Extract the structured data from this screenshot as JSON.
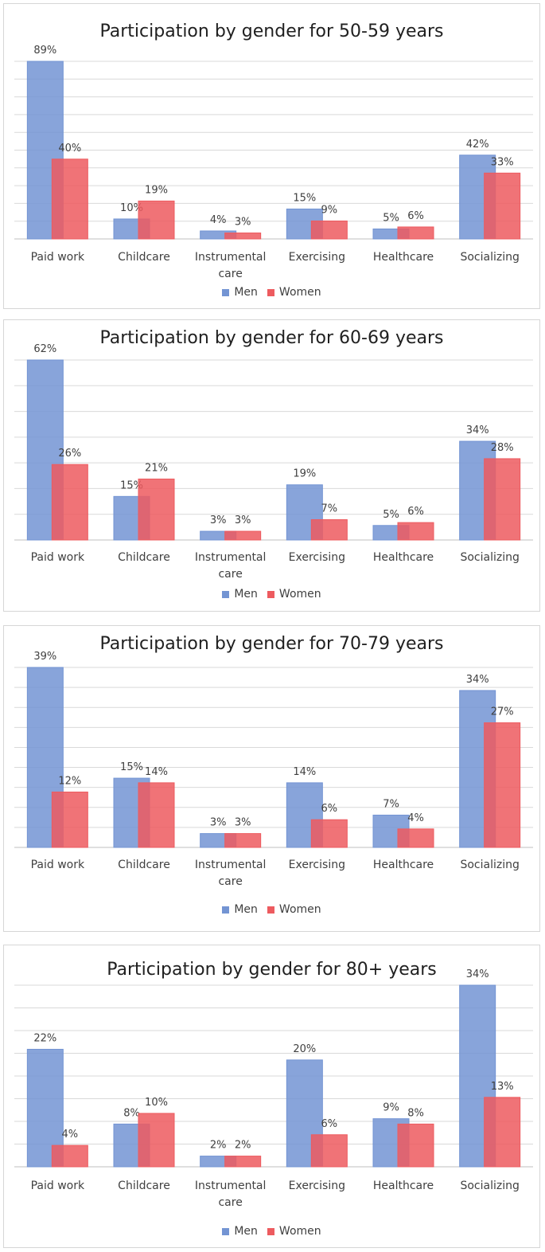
{
  "legend": {
    "men": "Men",
    "women": "Women"
  },
  "colors": {
    "men": "#7394d3",
    "women": "#ed5b5f"
  },
  "chart_data": [
    {
      "type": "bar",
      "title": "Participation by gender for 50-59 years",
      "categories": [
        [
          "Paid work"
        ],
        [
          "Childcare"
        ],
        [
          "Instrumental",
          "care"
        ],
        [
          "Exercising"
        ],
        [
          "Healthcare"
        ],
        [
          "Socializing"
        ]
      ],
      "series": [
        {
          "name": "Men",
          "values": [
            89,
            10,
            4,
            15,
            5,
            42
          ],
          "labels": [
            "89%",
            "10%",
            "4%",
            "15%",
            "5%",
            "42%"
          ]
        },
        {
          "name": "Women",
          "values": [
            40,
            19,
            3,
            9,
            6,
            33
          ],
          "labels": [
            "40%",
            "19%",
            "3%",
            "9%",
            "6%",
            "33%"
          ]
        }
      ],
      "grid": true,
      "legend_position": "bottom"
    },
    {
      "type": "bar",
      "title": "Participation by gender for 60-69 years",
      "categories": [
        [
          "Paid work"
        ],
        [
          "Childcare"
        ],
        [
          "Instrumental",
          "care"
        ],
        [
          "Exercising"
        ],
        [
          "Healthcare"
        ],
        [
          "Socializing"
        ]
      ],
      "series": [
        {
          "name": "Men",
          "values": [
            62,
            15,
            3,
            19,
            5,
            34
          ],
          "labels": [
            "62%",
            "15%",
            "3%",
            "19%",
            "5%",
            "34%"
          ]
        },
        {
          "name": "Women",
          "values": [
            26,
            21,
            3,
            7,
            6,
            28
          ],
          "labels": [
            "26%",
            "21%",
            "3%",
            "7%",
            "6%",
            "28%"
          ]
        }
      ],
      "grid": true,
      "legend_position": "bottom"
    },
    {
      "type": "bar",
      "title": "Participation by gender for 70-79 years",
      "categories": [
        [
          "Paid work"
        ],
        [
          "Childcare"
        ],
        [
          "Instrumental",
          "care"
        ],
        [
          "Exercising"
        ],
        [
          "Healthcare"
        ],
        [
          "Socializing"
        ]
      ],
      "series": [
        {
          "name": "Men",
          "values": [
            39,
            15,
            3,
            14,
            7,
            34
          ],
          "labels": [
            "39%",
            "15%",
            "3%",
            "14%",
            "7%",
            "34%"
          ]
        },
        {
          "name": "Women",
          "values": [
            12,
            14,
            3,
            6,
            4,
            27
          ],
          "labels": [
            "12%",
            "14%",
            "3%",
            "6%",
            "4%",
            "27%"
          ]
        }
      ],
      "grid": true,
      "legend_position": "bottom"
    },
    {
      "type": "bar",
      "title": "Participation by gender for 80+ years",
      "categories": [
        [
          "Paid work"
        ],
        [
          "Childcare"
        ],
        [
          "Instrumental",
          "care"
        ],
        [
          "Exercising"
        ],
        [
          "Healthcare"
        ],
        [
          "Socializing"
        ]
      ],
      "series": [
        {
          "name": "Men",
          "values": [
            22,
            8,
            2,
            20,
            9,
            34
          ],
          "labels": [
            "22%",
            "8%",
            "2%",
            "20%",
            "9%",
            "34%"
          ]
        },
        {
          "name": "Women",
          "values": [
            4,
            10,
            2,
            6,
            8,
            13
          ],
          "labels": [
            "4%",
            "10%",
            "2%",
            "6%",
            "8%",
            "13%"
          ]
        }
      ],
      "grid": true,
      "legend_position": "bottom"
    }
  ]
}
